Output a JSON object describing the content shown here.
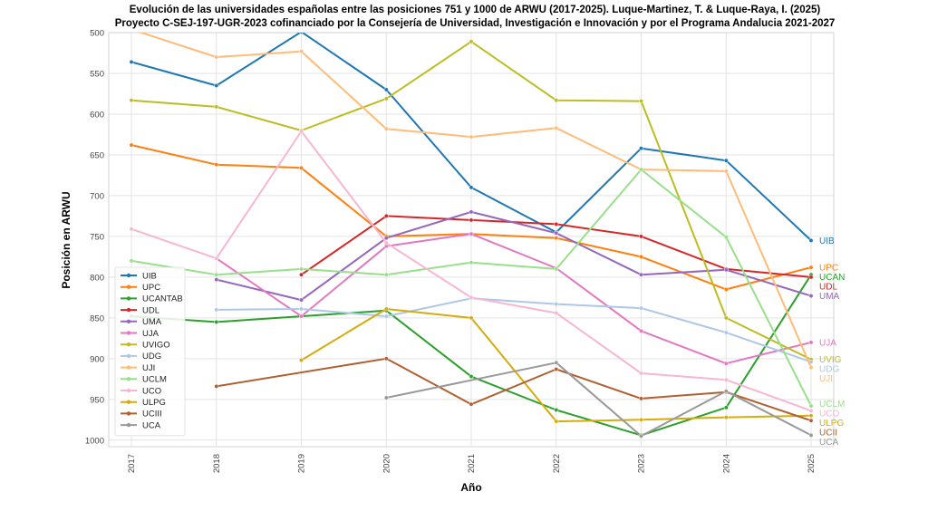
{
  "chart_data": {
    "type": "line",
    "title_lines": [
      "Evolución de las universidades españolas entre las posiciones 751 y 1000 de ARWU (2017-2025). Luque-Martinez, T. & Luque-Raya, I. (2025)",
      "Proyecto C-SEJ-197-UGR-2023 cofinanciado por la Consejería de Universidad, Investigación e Innovación y por el Programa Andalucia 2021-2027"
    ],
    "xlabel": "Año",
    "ylabel": "Posición en ARWU",
    "x": [
      2017,
      2018,
      2019,
      2020,
      2021,
      2022,
      2023,
      2024,
      2025
    ],
    "ylim": [
      1008,
      500
    ],
    "yticks": [
      500,
      550,
      600,
      650,
      700,
      750,
      800,
      850,
      900,
      950,
      1000
    ],
    "grid": true,
    "legend_position": "lower-left",
    "series": [
      {
        "name": "UIB",
        "color": "#1f77b4",
        "values": [
          536,
          565,
          499,
          570,
          690,
          745,
          642,
          657,
          755
        ],
        "end_label": "UIB"
      },
      {
        "name": "UPC",
        "color": "#ff7f0e",
        "values": [
          638,
          662,
          666,
          750,
          747,
          752,
          775,
          815,
          788
        ],
        "end_label": "UPC"
      },
      {
        "name": "UCANTAB",
        "color": "#2ca02c",
        "values": [
          848,
          855,
          null,
          841,
          922,
          963,
          994,
          960,
          797
        ],
        "end_label": "UCAN"
      },
      {
        "name": "UDL",
        "color": "#d62728",
        "values": [
          null,
          null,
          797,
          725,
          730,
          735,
          750,
          790,
          800
        ],
        "end_label": "UDL"
      },
      {
        "name": "UMA",
        "color": "#9467bd",
        "values": [
          null,
          803,
          828,
          752,
          720,
          746,
          797,
          791,
          823
        ],
        "end_label": "UMA"
      },
      {
        "name": "UJA",
        "color": "#e377c2",
        "values": [
          null,
          777,
          848,
          762,
          747,
          789,
          866,
          906,
          880
        ],
        "end_label": "UJA"
      },
      {
        "name": "UVIGO",
        "color": "#bcbd22",
        "values": [
          583,
          591,
          620,
          581,
          511,
          583,
          584,
          850,
          901
        ],
        "end_label": "UVIG"
      },
      {
        "name": "UDG",
        "color": "#aec7e8",
        "values": [
          null,
          840,
          839,
          848,
          826,
          833,
          838,
          868,
          904
        ],
        "end_label": "UDG"
      },
      {
        "name": "UJI",
        "color": "#ffbb78",
        "values": [
          496,
          530,
          523,
          618,
          628,
          617,
          668,
          670,
          911
        ],
        "end_label": "UJI"
      },
      {
        "name": "UCLM",
        "color": "#98df8a",
        "values": [
          780,
          797,
          790,
          797,
          782,
          790,
          668,
          751,
          958
        ],
        "end_label": "UCLM"
      },
      {
        "name": "UCO",
        "color": "#f7b6d2",
        "values": [
          741,
          777,
          621,
          758,
          825,
          844,
          918,
          926,
          964
        ],
        "end_label": "UCO"
      },
      {
        "name": "ULPG",
        "color": "#d4ac0d",
        "values": [
          null,
          null,
          902,
          839,
          850,
          977,
          975,
          972,
          970
        ],
        "end_label": "ULPG"
      },
      {
        "name": "UCIII",
        "color": "#b06030",
        "values": [
          null,
          934,
          null,
          900,
          956,
          913,
          949,
          941,
          976
        ],
        "end_label": "UCII"
      },
      {
        "name": "UCA",
        "color": "#999999",
        "values": [
          null,
          null,
          null,
          948,
          null,
          905,
          995,
          940,
          994
        ],
        "end_label": "UCA"
      }
    ]
  }
}
